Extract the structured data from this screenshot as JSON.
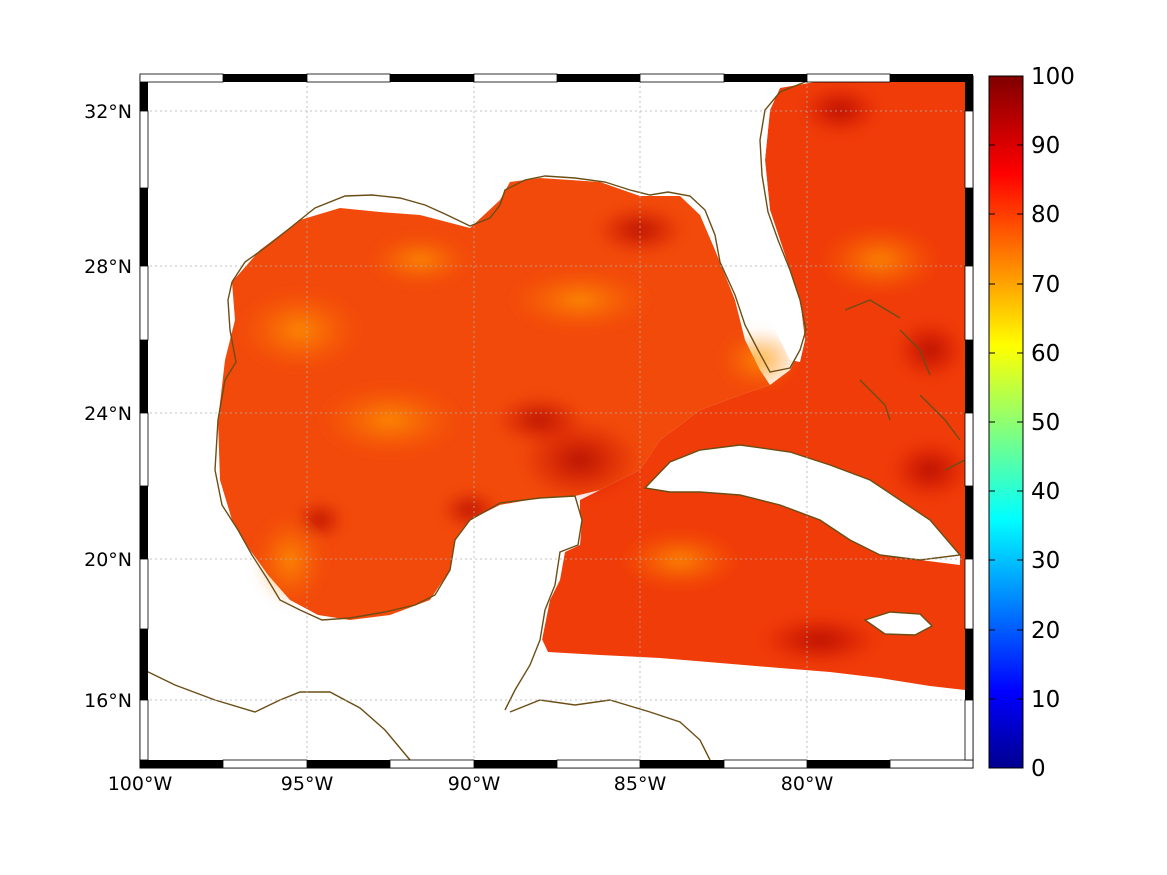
{
  "map": {
    "lon_ticks": [
      "100°W",
      "95°W",
      "90°W",
      "85°W",
      "80°W"
    ],
    "lat_ticks": [
      "32°N",
      "28°N",
      "24°N",
      "20°N",
      "16°N"
    ],
    "extent": {
      "lon_min": -100,
      "lon_max": -75,
      "lat_min": 14,
      "lat_max": 33
    },
    "coastline_color": "#6b4e16",
    "grid": "dotted"
  },
  "colorbar": {
    "ticks": [
      "100",
      "90",
      "80",
      "70",
      "60",
      "50",
      "40",
      "30",
      "20",
      "10",
      "0"
    ],
    "range": [
      0,
      100
    ],
    "colormap": "jet"
  }
}
